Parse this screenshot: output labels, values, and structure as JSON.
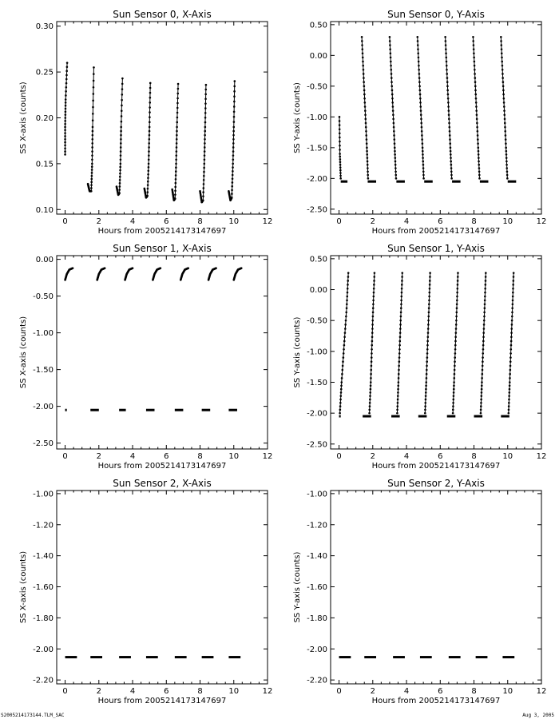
{
  "footer": {
    "left": "S2005214173144.TLM_SAC",
    "right": "Aug  3, 2005"
  },
  "chart_data": [
    {
      "type": "scatter",
      "title": "Sun Sensor 0, X-Axis",
      "xlabel": "Hours from 2005214173147697",
      "ylabel": "SS X-axis (counts)",
      "xlim": [
        -0.5,
        12
      ],
      "ylim": [
        0.095,
        0.305
      ],
      "xticks": [
        0,
        2,
        4,
        6,
        8,
        10,
        12
      ],
      "yticks": [
        0.1,
        0.15,
        0.2,
        0.25,
        0.3
      ],
      "ytick_labels": [
        "0.10",
        "0.15",
        "0.20",
        "0.25",
        "0.30"
      ],
      "segments": [
        {
          "kind": "line",
          "x": [
            0.0,
            0.0,
            0.03,
            0.12
          ],
          "y": [
            0.16,
            0.19,
            0.22,
            0.26
          ]
        },
        {
          "kind": "line",
          "x": [
            1.35,
            1.45,
            1.55,
            1.6,
            1.63,
            1.7
          ],
          "y": [
            0.128,
            0.12,
            0.12,
            0.15,
            0.19,
            0.255
          ]
        },
        {
          "kind": "line",
          "x": [
            3.05,
            3.15,
            3.22,
            3.28,
            3.32,
            3.4
          ],
          "y": [
            0.125,
            0.116,
            0.118,
            0.15,
            0.19,
            0.243
          ]
        },
        {
          "kind": "line",
          "x": [
            4.7,
            4.8,
            4.88,
            4.95,
            5.0,
            5.05
          ],
          "y": [
            0.123,
            0.113,
            0.115,
            0.15,
            0.19,
            0.238
          ]
        },
        {
          "kind": "line",
          "x": [
            6.35,
            6.45,
            6.52,
            6.58,
            6.63,
            6.7
          ],
          "y": [
            0.122,
            0.11,
            0.112,
            0.15,
            0.19,
            0.237
          ]
        },
        {
          "kind": "line",
          "x": [
            8.0,
            8.1,
            8.18,
            8.25,
            8.3,
            8.35
          ],
          "y": [
            0.12,
            0.108,
            0.11,
            0.15,
            0.19,
            0.236
          ]
        },
        {
          "kind": "line",
          "x": [
            9.7,
            9.8,
            9.88,
            9.95,
            10.0,
            10.05
          ],
          "y": [
            0.12,
            0.11,
            0.113,
            0.15,
            0.19,
            0.24
          ]
        }
      ]
    },
    {
      "type": "scatter",
      "title": "Sun Sensor 0, Y-Axis",
      "xlabel": "Hours from 2005214173147697",
      "ylabel": "SS Y-axis (counts)",
      "xlim": [
        -0.5,
        12
      ],
      "ylim": [
        -2.58,
        0.55
      ],
      "xticks": [
        0,
        2,
        4,
        6,
        8,
        10,
        12
      ],
      "yticks": [
        -2.5,
        -2.0,
        -1.5,
        -1.0,
        -0.5,
        0.0,
        0.5
      ],
      "ytick_labels": [
        "-2.50",
        "-2.00",
        "-1.50",
        "-1.00",
        "-0.50",
        "0.00",
        "0.50"
      ],
      "segments": [
        {
          "kind": "line",
          "x": [
            0.02,
            0.05,
            0.1
          ],
          "y": [
            -1.0,
            -1.6,
            -2.0
          ]
        },
        {
          "kind": "line",
          "x": [
            1.35,
            1.45,
            1.55,
            1.65,
            1.72
          ],
          "y": [
            0.3,
            -0.3,
            -0.9,
            -1.5,
            -2.0
          ]
        },
        {
          "kind": "line",
          "x": [
            3.0,
            3.1,
            3.2,
            3.3,
            3.38
          ],
          "y": [
            0.3,
            -0.3,
            -0.9,
            -1.5,
            -2.0
          ]
        },
        {
          "kind": "line",
          "x": [
            4.65,
            4.75,
            4.85,
            4.95,
            5.02
          ],
          "y": [
            0.3,
            -0.3,
            -0.9,
            -1.5,
            -2.0
          ]
        },
        {
          "kind": "line",
          "x": [
            6.3,
            6.4,
            6.5,
            6.6,
            6.68
          ],
          "y": [
            0.3,
            -0.3,
            -0.9,
            -1.5,
            -2.0
          ]
        },
        {
          "kind": "line",
          "x": [
            7.95,
            8.05,
            8.15,
            8.25,
            8.33
          ],
          "y": [
            0.3,
            -0.3,
            -0.9,
            -1.5,
            -2.0
          ]
        },
        {
          "kind": "line",
          "x": [
            9.6,
            9.7,
            9.8,
            9.9,
            9.98
          ],
          "y": [
            0.3,
            -0.3,
            -0.9,
            -1.5,
            -2.0
          ]
        },
        {
          "kind": "dash",
          "x": [
            0.1,
            0.5
          ],
          "y": [
            -2.05,
            -2.05
          ]
        },
        {
          "kind": "dash",
          "x": [
            1.7,
            2.2
          ],
          "y": [
            -2.05,
            -2.05
          ]
        },
        {
          "kind": "dash",
          "x": [
            3.4,
            3.9
          ],
          "y": [
            -2.05,
            -2.05
          ]
        },
        {
          "kind": "dash",
          "x": [
            5.05,
            5.55
          ],
          "y": [
            -2.05,
            -2.05
          ]
        },
        {
          "kind": "dash",
          "x": [
            6.7,
            7.2
          ],
          "y": [
            -2.05,
            -2.05
          ]
        },
        {
          "kind": "dash",
          "x": [
            8.35,
            8.85
          ],
          "y": [
            -2.05,
            -2.05
          ]
        },
        {
          "kind": "dash",
          "x": [
            10.0,
            10.5
          ],
          "y": [
            -2.05,
            -2.05
          ]
        }
      ]
    },
    {
      "type": "scatter",
      "title": "Sun Sensor 1, X-Axis",
      "xlabel": "Hours from 2005214173147697",
      "ylabel": "SS X-axis (counts)",
      "xlim": [
        -0.5,
        12
      ],
      "ylim": [
        -2.58,
        0.05
      ],
      "xticks": [
        0,
        2,
        4,
        6,
        8,
        10,
        12
      ],
      "yticks": [
        -2.5,
        -2.0,
        -1.5,
        -1.0,
        -0.5,
        0.0
      ],
      "ytick_labels": [
        "-2.50",
        "-2.00",
        "-1.50",
        "-1.00",
        "-0.50",
        "0.00"
      ],
      "segments": [
        {
          "kind": "line",
          "x": [
            0.0,
            0.1,
            0.25,
            0.45
          ],
          "y": [
            -0.28,
            -0.2,
            -0.14,
            -0.12
          ]
        },
        {
          "kind": "line",
          "x": [
            1.9,
            2.0,
            2.15,
            2.35
          ],
          "y": [
            -0.28,
            -0.2,
            -0.14,
            -0.12
          ]
        },
        {
          "kind": "line",
          "x": [
            3.55,
            3.65,
            3.8,
            4.0
          ],
          "y": [
            -0.28,
            -0.2,
            -0.14,
            -0.12
          ]
        },
        {
          "kind": "line",
          "x": [
            5.2,
            5.3,
            5.45,
            5.65
          ],
          "y": [
            -0.28,
            -0.2,
            -0.14,
            -0.12
          ]
        },
        {
          "kind": "line",
          "x": [
            6.85,
            6.95,
            7.1,
            7.3
          ],
          "y": [
            -0.28,
            -0.2,
            -0.14,
            -0.12
          ]
        },
        {
          "kind": "line",
          "x": [
            8.5,
            8.6,
            8.75,
            8.95
          ],
          "y": [
            -0.28,
            -0.2,
            -0.14,
            -0.12
          ]
        },
        {
          "kind": "line",
          "x": [
            10.0,
            10.1,
            10.25,
            10.45
          ],
          "y": [
            -0.28,
            -0.2,
            -0.14,
            -0.12
          ]
        },
        {
          "kind": "dash",
          "x": [
            0.0,
            0.1
          ],
          "y": [
            -2.05,
            -2.05
          ]
        },
        {
          "kind": "dash",
          "x": [
            1.5,
            2.0
          ],
          "y": [
            -2.05,
            -2.05
          ]
        },
        {
          "kind": "dash",
          "x": [
            3.2,
            3.6
          ],
          "y": [
            -2.05,
            -2.05
          ]
        },
        {
          "kind": "dash",
          "x": [
            4.8,
            5.3
          ],
          "y": [
            -2.05,
            -2.05
          ]
        },
        {
          "kind": "dash",
          "x": [
            6.5,
            7.0
          ],
          "y": [
            -2.05,
            -2.05
          ]
        },
        {
          "kind": "dash",
          "x": [
            8.1,
            8.6
          ],
          "y": [
            -2.05,
            -2.05
          ]
        },
        {
          "kind": "dash",
          "x": [
            9.7,
            10.2
          ],
          "y": [
            -2.05,
            -2.05
          ]
        }
      ]
    },
    {
      "type": "scatter",
      "title": "Sun Sensor 1, Y-Axis",
      "xlabel": "Hours from 2005214173147697",
      "ylabel": "SS Y-axis (counts)",
      "xlim": [
        -0.5,
        12
      ],
      "ylim": [
        -2.58,
        0.55
      ],
      "xticks": [
        0,
        2,
        4,
        6,
        8,
        10,
        12
      ],
      "yticks": [
        -2.5,
        -2.0,
        -1.5,
        -1.0,
        -0.5,
        0.0,
        0.5
      ],
      "ytick_labels": [
        "-2.50",
        "-2.00",
        "-1.50",
        "-1.00",
        "-0.50",
        "0.00",
        "0.50"
      ],
      "segments": [
        {
          "kind": "line",
          "x": [
            0.05,
            0.15,
            0.3,
            0.45,
            0.55
          ],
          "y": [
            -2.0,
            -1.5,
            -0.9,
            -0.3,
            0.27
          ]
        },
        {
          "kind": "line",
          "x": [
            1.8,
            1.88,
            1.95,
            2.02,
            2.1
          ],
          "y": [
            -2.0,
            -1.5,
            -0.9,
            -0.3,
            0.27
          ]
        },
        {
          "kind": "line",
          "x": [
            3.45,
            3.52,
            3.6,
            3.68,
            3.75
          ],
          "y": [
            -2.0,
            -1.5,
            -0.9,
            -0.3,
            0.27
          ]
        },
        {
          "kind": "line",
          "x": [
            5.1,
            5.17,
            5.25,
            5.33,
            5.4
          ],
          "y": [
            -2.0,
            -1.5,
            -0.9,
            -0.3,
            0.27
          ]
        },
        {
          "kind": "line",
          "x": [
            6.75,
            6.82,
            6.9,
            6.98,
            7.05
          ],
          "y": [
            -2.0,
            -1.5,
            -0.9,
            -0.3,
            0.27
          ]
        },
        {
          "kind": "line",
          "x": [
            8.4,
            8.47,
            8.55,
            8.63,
            8.7
          ],
          "y": [
            -2.0,
            -1.5,
            -0.9,
            -0.3,
            0.27
          ]
        },
        {
          "kind": "line",
          "x": [
            10.05,
            10.12,
            10.2,
            10.28,
            10.35
          ],
          "y": [
            -2.0,
            -1.5,
            -0.9,
            -0.3,
            0.27
          ]
        },
        {
          "kind": "dash",
          "x": [
            0.0,
            0.1
          ],
          "y": [
            -2.05,
            -2.05
          ]
        },
        {
          "kind": "dash",
          "x": [
            1.4,
            1.9
          ],
          "y": [
            -2.05,
            -2.05
          ]
        },
        {
          "kind": "dash",
          "x": [
            3.1,
            3.6
          ],
          "y": [
            -2.05,
            -2.05
          ]
        },
        {
          "kind": "dash",
          "x": [
            4.7,
            5.2
          ],
          "y": [
            -2.05,
            -2.05
          ]
        },
        {
          "kind": "dash",
          "x": [
            6.4,
            6.9
          ],
          "y": [
            -2.05,
            -2.05
          ]
        },
        {
          "kind": "dash",
          "x": [
            8.0,
            8.5
          ],
          "y": [
            -2.05,
            -2.05
          ]
        },
        {
          "kind": "dash",
          "x": [
            9.6,
            10.1
          ],
          "y": [
            -2.05,
            -2.05
          ]
        }
      ]
    },
    {
      "type": "scatter",
      "title": "Sun Sensor 2, X-Axis",
      "xlabel": "Hours from 2005214173147697",
      "ylabel": "SS X-axis (counts)",
      "xlim": [
        -0.5,
        12
      ],
      "ylim": [
        -2.225,
        -0.98
      ],
      "xticks": [
        0,
        2,
        4,
        6,
        8,
        10,
        12
      ],
      "yticks": [
        -2.2,
        -2.0,
        -1.8,
        -1.6,
        -1.4,
        -1.2,
        -1.0
      ],
      "ytick_labels": [
        "-2.20",
        "-2.00",
        "-1.80",
        "-1.60",
        "-1.40",
        "-1.20",
        "-1.00"
      ],
      "segments": [
        {
          "kind": "dash",
          "x": [
            0.0,
            0.7
          ],
          "y": [
            -2.053,
            -2.053
          ]
        },
        {
          "kind": "dash",
          "x": [
            1.5,
            2.2
          ],
          "y": [
            -2.053,
            -2.053
          ]
        },
        {
          "kind": "dash",
          "x": [
            3.2,
            3.9
          ],
          "y": [
            -2.053,
            -2.053
          ]
        },
        {
          "kind": "dash",
          "x": [
            4.8,
            5.5
          ],
          "y": [
            -2.053,
            -2.053
          ]
        },
        {
          "kind": "dash",
          "x": [
            6.5,
            7.2
          ],
          "y": [
            -2.053,
            -2.053
          ]
        },
        {
          "kind": "dash",
          "x": [
            8.1,
            8.8
          ],
          "y": [
            -2.053,
            -2.053
          ]
        },
        {
          "kind": "dash",
          "x": [
            9.7,
            10.4
          ],
          "y": [
            -2.053,
            -2.053
          ]
        }
      ]
    },
    {
      "type": "scatter",
      "title": "Sun Sensor 2, Y-Axis",
      "xlabel": "Hours from 2005214173147697",
      "ylabel": "SS Y-axis (counts)",
      "xlim": [
        -0.5,
        12
      ],
      "ylim": [
        -2.225,
        -0.98
      ],
      "xticks": [
        0,
        2,
        4,
        6,
        8,
        10,
        12
      ],
      "yticks": [
        -2.2,
        -2.0,
        -1.8,
        -1.6,
        -1.4,
        -1.2,
        -1.0
      ],
      "ytick_labels": [
        "-2.20",
        "-2.00",
        "-1.80",
        "-1.60",
        "-1.40",
        "-1.20",
        "-1.00"
      ],
      "segments": [
        {
          "kind": "dash",
          "x": [
            0.0,
            0.7
          ],
          "y": [
            -2.053,
            -2.053
          ]
        },
        {
          "kind": "dash",
          "x": [
            1.5,
            2.2
          ],
          "y": [
            -2.053,
            -2.053
          ]
        },
        {
          "kind": "dash",
          "x": [
            3.2,
            3.9
          ],
          "y": [
            -2.053,
            -2.053
          ]
        },
        {
          "kind": "dash",
          "x": [
            4.8,
            5.5
          ],
          "y": [
            -2.053,
            -2.053
          ]
        },
        {
          "kind": "dash",
          "x": [
            6.5,
            7.2
          ],
          "y": [
            -2.053,
            -2.053
          ]
        },
        {
          "kind": "dash",
          "x": [
            8.1,
            8.8
          ],
          "y": [
            -2.053,
            -2.053
          ]
        },
        {
          "kind": "dash",
          "x": [
            9.7,
            10.4
          ],
          "y": [
            -2.053,
            -2.053
          ]
        }
      ]
    }
  ]
}
